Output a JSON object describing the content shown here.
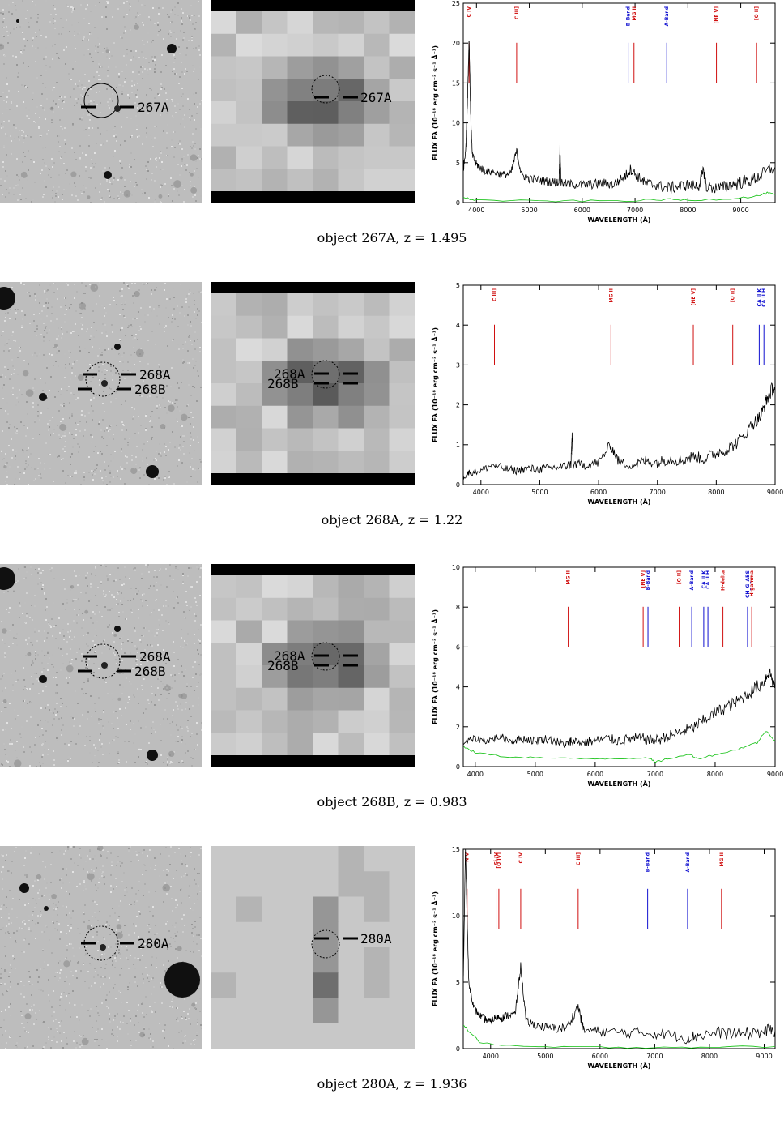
{
  "panels": [
    {
      "id": "267A",
      "caption": "object 267A, z =  1.495",
      "sky_labels": [
        "267A"
      ],
      "pix_labels": [
        "267A"
      ],
      "pix_style": "bands",
      "chart_data": {
        "type": "line",
        "xlabel": "WAVELENGTH (Å)",
        "ylabel": "FLUX  Fλ  (10⁻¹⁸ erg cm⁻² s⁻¹ Å⁻¹)",
        "xlim": [
          3750,
          9650
        ],
        "ylim": [
          0,
          25
        ],
        "xticks": [
          4000,
          5000,
          6000,
          7000,
          8000,
          9000
        ],
        "yticks": [
          0,
          5,
          10,
          15,
          20,
          25
        ],
        "lines": [
          {
            "label": "C IV",
            "x": 3860,
            "color": "#d01010"
          },
          {
            "label": "C III]",
            "x": 4760,
            "color": "#d01010"
          },
          {
            "label": "B-Band",
            "x": 6870,
            "color": "#1010d0"
          },
          {
            "label": "MG II",
            "x": 6980,
            "color": "#d01010"
          },
          {
            "label": "A-Band",
            "x": 7600,
            "color": "#1010d0"
          },
          {
            "label": "[NE V]",
            "x": 8540,
            "color": "#d01010"
          },
          {
            "label": "[O II]",
            "x": 9300,
            "color": "#d01010"
          }
        ],
        "series": [
          {
            "color": "#000000",
            "points": [
              [
                3750,
                4
              ],
              [
                3800,
                7
              ],
              [
                3830,
                13
              ],
              [
                3860,
                20.5
              ],
              [
                3890,
                11
              ],
              [
                3920,
                6
              ],
              [
                3980,
                5
              ],
              [
                4050,
                4.5
              ],
              [
                4150,
                4
              ],
              [
                4300,
                3.8
              ],
              [
                4500,
                3.5
              ],
              [
                4650,
                3.6
              ],
              [
                4760,
                6.5
              ],
              [
                4850,
                3.5
              ],
              [
                5000,
                3.0
              ],
              [
                5200,
                2.8
              ],
              [
                5400,
                2.6
              ],
              [
                5560,
                2.5
              ],
              [
                5580,
                7
              ],
              [
                5600,
                2.4
              ],
              [
                5800,
                2.3
              ],
              [
                6000,
                2.2
              ],
              [
                6200,
                2.3
              ],
              [
                6400,
                2.4
              ],
              [
                6600,
                2.3
              ],
              [
                6800,
                3.2
              ],
              [
                6920,
                4.2
              ],
              [
                7050,
                3.3
              ],
              [
                7200,
                2.4
              ],
              [
                7400,
                2.2
              ],
              [
                7600,
                1.8
              ],
              [
                7800,
                2.0
              ],
              [
                8000,
                2.2
              ],
              [
                8200,
                2.0
              ],
              [
                8300,
                4.0
              ],
              [
                8350,
                2.0
              ],
              [
                8600,
                1.8
              ],
              [
                8800,
                2.2
              ],
              [
                9000,
                2.5
              ],
              [
                9200,
                2.8
              ],
              [
                9400,
                3.5
              ],
              [
                9650,
                4.5
              ]
            ]
          },
          {
            "color": "#10c010",
            "points": [
              [
                3750,
                0.6
              ],
              [
                4000,
                0.3
              ],
              [
                5000,
                0.2
              ],
              [
                6000,
                0.2
              ],
              [
                7000,
                0.25
              ],
              [
                7600,
                0.4
              ],
              [
                8000,
                0.3
              ],
              [
                8800,
                0.5
              ],
              [
                9300,
                0.8
              ],
              [
                9500,
                1.2
              ],
              [
                9650,
                1.0
              ]
            ]
          }
        ]
      }
    },
    {
      "id": "268A",
      "caption": "object 268A, z =  1.22",
      "sky_labels": [
        "268A",
        "268B"
      ],
      "pix_labels": [
        "268A",
        "268B"
      ],
      "pix_style": "bands",
      "chart_data": {
        "type": "line",
        "xlabel": "WAVELENGTH (Å)",
        "ylabel": "FLUX  Fλ  (10⁻¹⁸ erg cm⁻² s⁻¹ Å⁻¹)",
        "xlim": [
          3700,
          9000
        ],
        "ylim": [
          0,
          5
        ],
        "xticks": [
          4000,
          5000,
          6000,
          7000,
          8000,
          9000
        ],
        "yticks": [
          0,
          1,
          2,
          3,
          4,
          5
        ],
        "lines": [
          {
            "label": "C III]",
            "x": 4230,
            "color": "#d01010"
          },
          {
            "label": "MG II",
            "x": 6210,
            "color": "#d01010"
          },
          {
            "label": "[NE V]",
            "x": 7610,
            "color": "#d01010"
          },
          {
            "label": "[O II]",
            "x": 8280,
            "color": "#d01010"
          },
          {
            "label": "CA II K",
            "x": 8730,
            "color": "#1010d0"
          },
          {
            "label": "CA II H",
            "x": 8810,
            "color": "#1010d0"
          }
        ],
        "series": [
          {
            "color": "#000000",
            "points": [
              [
                3700,
                0.2
              ],
              [
                3800,
                0.3
              ],
              [
                4000,
                0.35
              ],
              [
                4200,
                0.5
              ],
              [
                4400,
                0.4
              ],
              [
                4600,
                0.35
              ],
              [
                4800,
                0.4
              ],
              [
                5000,
                0.38
              ],
              [
                5200,
                0.42
              ],
              [
                5400,
                0.45
              ],
              [
                5530,
                0.5
              ],
              [
                5550,
                1.25
              ],
              [
                5570,
                0.5
              ],
              [
                5800,
                0.5
              ],
              [
                6000,
                0.55
              ],
              [
                6200,
                1.0
              ],
              [
                6350,
                0.55
              ],
              [
                6600,
                0.5
              ],
              [
                6800,
                0.6
              ],
              [
                7000,
                0.55
              ],
              [
                7200,
                0.65
              ],
              [
                7400,
                0.6
              ],
              [
                7600,
                0.7
              ],
              [
                7800,
                0.65
              ],
              [
                8000,
                0.8
              ],
              [
                8200,
                0.9
              ],
              [
                8400,
                1.1
              ],
              [
                8600,
                1.5
              ],
              [
                8750,
                1.7
              ],
              [
                8850,
                2.1
              ],
              [
                8950,
                2.4
              ],
              [
                9000,
                2.3
              ]
            ]
          }
        ]
      }
    },
    {
      "id": "268B",
      "caption": "object 268B, z = 0.983",
      "sky_labels": [
        "268A",
        "268B"
      ],
      "pix_labels": [
        "268A",
        "268B"
      ],
      "pix_style": "bands",
      "chart_data": {
        "type": "line",
        "xlabel": "WAVELENGTH (Å)",
        "ylabel": "FLUX  Fλ  (10⁻¹⁸ erg cm⁻² s⁻¹ Å⁻¹)",
        "xlim": [
          3800,
          9000
        ],
        "ylim": [
          0,
          10
        ],
        "xticks": [
          4000,
          5000,
          6000,
          7000,
          8000,
          9000
        ],
        "yticks": [
          0,
          2,
          4,
          6,
          8,
          10
        ],
        "lines": [
          {
            "label": "MG II",
            "x": 5550,
            "color": "#d01010"
          },
          {
            "label": "[NE V]",
            "x": 6800,
            "color": "#d01010"
          },
          {
            "label": "B-Band",
            "x": 6880,
            "color": "#1010d0"
          },
          {
            "label": "[O II]",
            "x": 7400,
            "color": "#d01010"
          },
          {
            "label": "A-Band",
            "x": 7610,
            "color": "#1010d0"
          },
          {
            "label": "CA II K",
            "x": 7810,
            "color": "#1010d0"
          },
          {
            "label": "CA II H",
            "x": 7880,
            "color": "#1010d0"
          },
          {
            "label": "H-delta",
            "x": 8130,
            "color": "#d01010"
          },
          {
            "label": "CH_G_ABS",
            "x": 8540,
            "color": "#1010d0"
          },
          {
            "label": "H-gamma",
            "x": 8610,
            "color": "#d01010"
          }
        ],
        "series": [
          {
            "color": "#000000",
            "points": [
              [
                3800,
                1.2
              ],
              [
                4000,
                1.4
              ],
              [
                4200,
                1.3
              ],
              [
                4400,
                1.5
              ],
              [
                4600,
                1.3
              ],
              [
                4800,
                1.4
              ],
              [
                5000,
                1.3
              ],
              [
                5200,
                1.4
              ],
              [
                5400,
                1.2
              ],
              [
                5550,
                1.1
              ],
              [
                5600,
                1.3
              ],
              [
                5800,
                1.2
              ],
              [
                6000,
                1.3
              ],
              [
                6200,
                1.4
              ],
              [
                6400,
                1.3
              ],
              [
                6600,
                1.4
              ],
              [
                6800,
                1.4
              ],
              [
                7000,
                1.3
              ],
              [
                7200,
                1.5
              ],
              [
                7400,
                1.7
              ],
              [
                7600,
                1.9
              ],
              [
                7800,
                2.3
              ],
              [
                8000,
                2.7
              ],
              [
                8200,
                3.0
              ],
              [
                8400,
                3.3
              ],
              [
                8600,
                3.8
              ],
              [
                8800,
                4.2
              ],
              [
                8900,
                4.8
              ],
              [
                9000,
                4.0
              ]
            ]
          },
          {
            "color": "#10c010",
            "points": [
              [
                3800,
                1.0
              ],
              [
                4000,
                0.7
              ],
              [
                4500,
                0.5
              ],
              [
                5000,
                0.45
              ],
              [
                5500,
                0.4
              ],
              [
                6000,
                0.4
              ],
              [
                6500,
                0.42
              ],
              [
                6900,
                0.45
              ],
              [
                7000,
                0.2
              ],
              [
                7200,
                0.4
              ],
              [
                7600,
                0.6
              ],
              [
                7700,
                0.4
              ],
              [
                8000,
                0.6
              ],
              [
                8300,
                0.8
              ],
              [
                8500,
                1.0
              ],
              [
                8700,
                1.2
              ],
              [
                8850,
                1.8
              ],
              [
                9000,
                1.3
              ]
            ]
          }
        ]
      }
    },
    {
      "id": "280A",
      "caption": "object 280A, z =  1.936",
      "sky_labels": [
        "280A"
      ],
      "pix_labels": [
        "280A"
      ],
      "pix_style": "plain",
      "chart_data": {
        "type": "line",
        "xlabel": "WAVELENGTH (Å)",
        "ylabel": "FLUX  Fλ  (10⁻¹⁸ erg cm⁻² s⁻¹ Å⁻¹)",
        "xlim": [
          3500,
          9200
        ],
        "ylim": [
          0,
          15
        ],
        "xticks": [
          4000,
          5000,
          6000,
          7000,
          8000,
          9000
        ],
        "yticks": [
          0,
          5,
          10,
          15
        ],
        "lines": [
          {
            "label": "N V",
            "x": 3570,
            "color": "#d01010"
          },
          {
            "label": "Si IV",
            "x": 4100,
            "color": "#d01010"
          },
          {
            "label": "[O IV]",
            "x": 4150,
            "color": "#d01010"
          },
          {
            "label": "C IV",
            "x": 4550,
            "color": "#d01010"
          },
          {
            "label": "C III]",
            "x": 5600,
            "color": "#d01010"
          },
          {
            "label": "B-Band",
            "x": 6870,
            "color": "#1010d0"
          },
          {
            "label": "A-Band",
            "x": 7600,
            "color": "#1010d0"
          },
          {
            "label": "MG II",
            "x": 8220,
            "color": "#d01010"
          }
        ],
        "series": [
          {
            "color": "#000000",
            "points": [
              [
                3500,
                5
              ],
              [
                3540,
                15
              ],
              [
                3570,
                10
              ],
              [
                3600,
                5
              ],
              [
                3700,
                3
              ],
              [
                3800,
                2.5
              ],
              [
                3900,
                2.2
              ],
              [
                4000,
                2.0
              ],
              [
                4100,
                2.4
              ],
              [
                4200,
                2.3
              ],
              [
                4300,
                2.5
              ],
              [
                4450,
                2.6
              ],
              [
                4550,
                6.2
              ],
              [
                4650,
                2.0
              ],
              [
                4800,
                1.8
              ],
              [
                5000,
                1.6
              ],
              [
                5200,
                1.5
              ],
              [
                5400,
                1.6
              ],
              [
                5600,
                3.2
              ],
              [
                5700,
                1.4
              ],
              [
                6000,
                1.3
              ],
              [
                6400,
                1.2
              ],
              [
                6800,
                1.2
              ],
              [
                7200,
                1.1
              ],
              [
                7600,
                0.8
              ],
              [
                7800,
                1.0
              ],
              [
                8200,
                1.2
              ],
              [
                8600,
                1.1
              ],
              [
                9000,
                1.3
              ],
              [
                9200,
                1.4
              ]
            ]
          },
          {
            "color": "#10c010",
            "points": [
              [
                3500,
                1.8
              ],
              [
                3600,
                1.3
              ],
              [
                3800,
                0.5
              ],
              [
                4200,
                0.2
              ],
              [
                5000,
                0.12
              ],
              [
                6000,
                0.1
              ],
              [
                7000,
                0.1
              ],
              [
                8000,
                0.12
              ],
              [
                9200,
                0.15
              ]
            ]
          }
        ]
      }
    }
  ]
}
